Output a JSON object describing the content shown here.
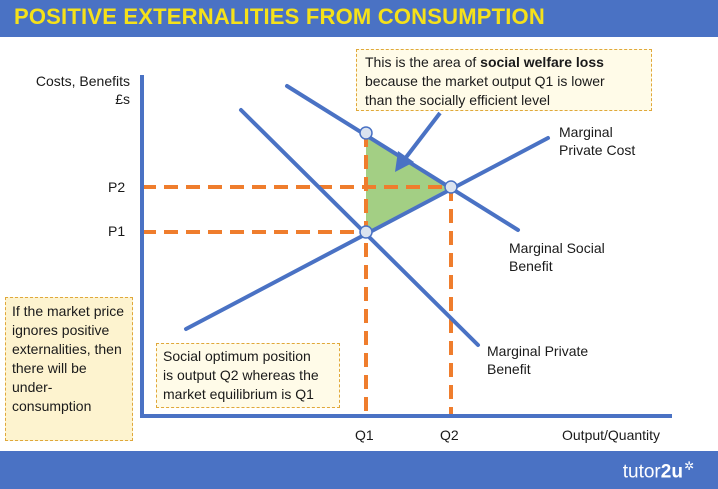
{
  "title": "POSITIVE EXTERNALITIES FROM CONSUMPTION",
  "axis": {
    "y_label_line1": "Costs, Benefits",
    "y_label_line2": "£s",
    "x_label": "Output/Quantity"
  },
  "ticks": {
    "p2": "P2",
    "p1": "P1",
    "q1": "Q1",
    "q2": "Q2"
  },
  "curves": {
    "mpc_line1": "Marginal",
    "mpc_line2": "Private Cost",
    "msb_line1": "Marginal Social",
    "msb_line2": "Benefit",
    "mpb_line1": "Marginal Private",
    "mpb_line2": "Benefit"
  },
  "annotations": {
    "welfare_pre": "This is the area of ",
    "welfare_bold": "social welfare loss",
    "welfare_line2": "because the market output Q1 is lower",
    "welfare_line3": "than the socially efficient level",
    "optimum_line1": "Social optimum position",
    "optimum_line2": "is output Q2 whereas the",
    "optimum_line3": "market equilibrium is Q1",
    "left_text": "If the market price ignores positive externalities, then there will be under-consumption"
  },
  "logo": {
    "text_regular": "tutor",
    "text_bold": "2u"
  },
  "colors": {
    "header": "#4a72c4",
    "title": "#f5e11a",
    "curve": "#4a72c4",
    "dashed": "#ef7d2d",
    "triangle": "#a3cf84"
  }
}
